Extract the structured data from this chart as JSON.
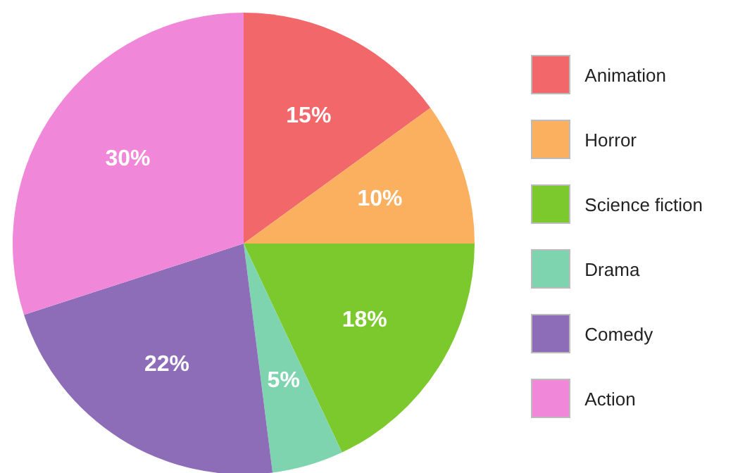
{
  "chart_data": {
    "type": "pie",
    "categories": [
      "Animation",
      "Horror",
      "Science fiction",
      "Drama",
      "Comedy",
      "Action"
    ],
    "values": [
      15,
      10,
      18,
      5,
      22,
      30
    ],
    "value_labels": [
      "15%",
      "10%",
      "18%",
      "5%",
      "22%",
      "30%"
    ],
    "colors": [
      "#f2676a",
      "#fbb060",
      "#7cc92e",
      "#7fd4b0",
      "#8d6cb8",
      "#f187d8"
    ],
    "legend": "right"
  }
}
